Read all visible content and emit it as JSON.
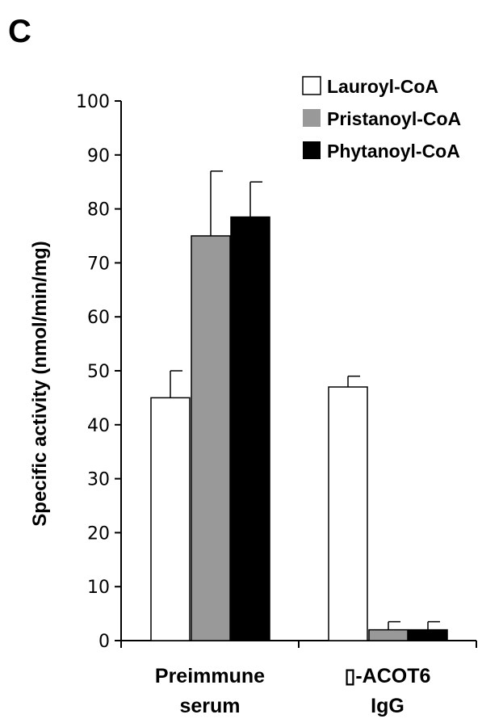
{
  "panel_label": "C",
  "chart_data": {
    "type": "bar",
    "ylabel": "Specific activity (nmol/min/mg)",
    "xlabel": "",
    "ylim": [
      0,
      100
    ],
    "yticks": [
      "0",
      "10",
      "20",
      "30",
      "40",
      "50",
      "60",
      "70",
      "80",
      "90",
      "100"
    ],
    "categories": [
      {
        "lines": [
          "Preimmune",
          "serum"
        ]
      },
      {
        "lines": [
          "▯-ACOT6",
          "IgG"
        ]
      }
    ],
    "series": [
      {
        "name": "Lauroyl-CoA",
        "color": "#ffffff",
        "values": [
          45,
          47
        ],
        "errors": [
          5,
          2
        ]
      },
      {
        "name": "Pristanoyl-CoA",
        "color": "#999999",
        "values": [
          75,
          2
        ],
        "errors": [
          12,
          1.5
        ]
      },
      {
        "name": "Phytanoyl-CoA",
        "color": "#000000",
        "values": [
          78.5,
          2
        ],
        "errors": [
          6.5,
          1.5
        ]
      }
    ],
    "legend_position": "top-right",
    "grid": false
  }
}
